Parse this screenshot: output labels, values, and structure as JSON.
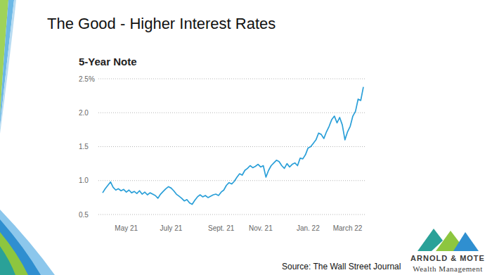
{
  "slide": {
    "title": "The Good - Higher Interest Rates",
    "source": "Source: The Wall Street Journal",
    "logo": {
      "name": "ARNOLD & MOTE",
      "tagline": "Wealth Management"
    }
  },
  "chart_data": {
    "type": "line",
    "title": "5-Year Note",
    "color": "#2a9fd8",
    "categories": [
      null,
      null,
      null,
      null,
      null,
      null,
      null,
      null,
      null,
      "May 21",
      null,
      null,
      null,
      null,
      null,
      null,
      null,
      null,
      null,
      null,
      null,
      null,
      null,
      null,
      null,
      null,
      "July 21",
      null,
      null,
      null,
      null,
      null,
      null,
      null,
      null,
      null,
      null,
      null,
      null,
      null,
      null,
      null,
      null,
      null,
      null,
      "Sept. 21",
      null,
      null,
      null,
      null,
      null,
      null,
      null,
      null,
      null,
      null,
      null,
      null,
      null,
      null,
      "Nov. 21",
      null,
      null,
      null,
      null,
      null,
      null,
      null,
      null,
      null,
      null,
      null,
      null,
      null,
      null,
      null,
      null,
      null,
      "Jan. 22",
      null,
      null,
      null,
      null,
      null,
      null,
      null,
      null,
      null,
      null,
      null,
      null,
      null,
      null,
      "March 22",
      null,
      null,
      null,
      null,
      null,
      null
    ],
    "values": [
      0.82,
      0.88,
      0.93,
      0.98,
      0.9,
      0.86,
      0.88,
      0.85,
      0.87,
      0.83,
      0.86,
      0.82,
      0.84,
      0.81,
      0.85,
      0.8,
      0.83,
      0.79,
      0.82,
      0.8,
      0.78,
      0.74,
      0.8,
      0.84,
      0.88,
      0.91,
      0.89,
      0.85,
      0.8,
      0.77,
      0.74,
      0.7,
      0.72,
      0.67,
      0.65,
      0.71,
      0.76,
      0.79,
      0.76,
      0.78,
      0.75,
      0.77,
      0.79,
      0.8,
      0.78,
      0.83,
      0.86,
      0.93,
      0.97,
      0.95,
      0.99,
      1.05,
      1.1,
      1.08,
      1.15,
      1.18,
      1.22,
      1.19,
      1.21,
      1.24,
      1.2,
      1.22,
      1.05,
      1.15,
      1.22,
      1.26,
      1.3,
      1.28,
      1.22,
      1.18,
      1.25,
      1.2,
      1.24,
      1.26,
      1.22,
      1.33,
      1.32,
      1.38,
      1.48,
      1.5,
      1.55,
      1.6,
      1.7,
      1.68,
      1.62,
      1.72,
      1.8,
      1.9,
      1.95,
      1.85,
      1.93,
      1.82,
      1.6,
      1.72,
      1.8,
      1.95,
      2.02,
      2.2,
      2.18,
      2.38
    ],
    "ylim": [
      0.5,
      2.5
    ],
    "yticks": [
      0.5,
      {
        "value": 1,
        "label": "1.0"
      },
      1.5,
      {
        "value": 2,
        "label": "2.0"
      },
      {
        "value": 2.5,
        "label": "2.5%"
      }
    ],
    "grid": true
  }
}
